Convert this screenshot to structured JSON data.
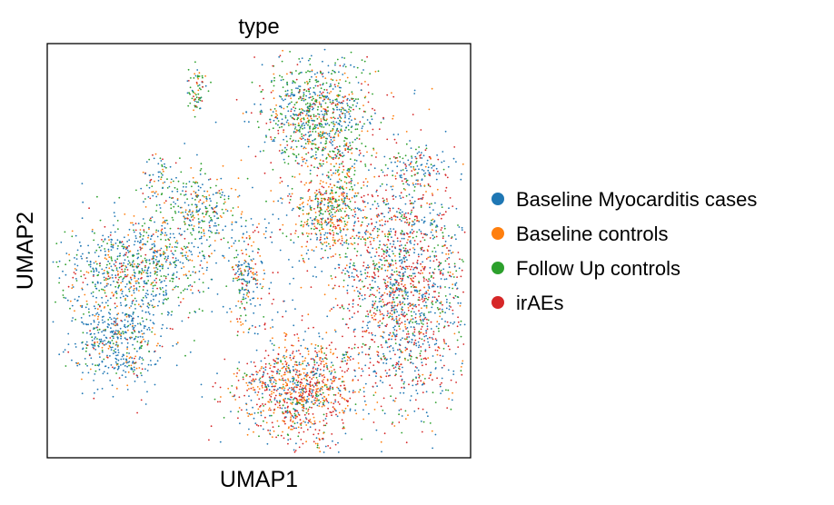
{
  "chart_data": {
    "type": "scatter",
    "title": "type",
    "xlabel": "UMAP1",
    "ylabel": "UMAP2",
    "ticks_shown": false,
    "grid": false,
    "legend_position": "right-outside",
    "legend": [
      {
        "name": "Baseline Myocarditis cases",
        "color": "#1f77b4"
      },
      {
        "name": "Baseline controls",
        "color": "#ff7f0e"
      },
      {
        "name": "Follow Up controls",
        "color": "#2ca02c"
      },
      {
        "name": "irAEs",
        "color": "#d62728"
      }
    ]
  }
}
